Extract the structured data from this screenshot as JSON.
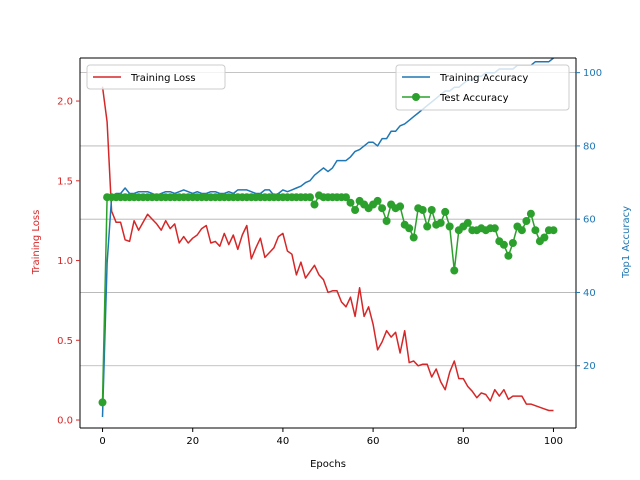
{
  "chart_data": {
    "type": "line",
    "title": "",
    "xlabel": "Epochs",
    "ylabel_left": "Training Loss",
    "ylabel_right": "Top1 Accuracy",
    "xlim": [
      -5,
      105
    ],
    "ylim_left": [
      -0.05,
      2.27
    ],
    "ylim_right": [
      3,
      104
    ],
    "x_ticks": [
      0,
      20,
      40,
      60,
      80,
      100
    ],
    "y_left_ticks": [
      0.0,
      0.5,
      1.0,
      1.5,
      2.0
    ],
    "y_left_tick_labels": [
      "0.0",
      "0.5",
      "1.0",
      "1.5",
      "2.0"
    ],
    "y_right_ticks": [
      20,
      40,
      60,
      80,
      100
    ],
    "grid": "horizontal gridlines at right-axis ticks",
    "legend_left": {
      "position": "top-left",
      "entries": [
        "Training Loss"
      ]
    },
    "legend_right": {
      "position": "top-right",
      "entries": [
        "Training Accuracy",
        "Test Accuracy"
      ]
    },
    "colors": {
      "loss": "#d62728",
      "train_acc": "#1f77b4",
      "test_acc": "#2ca02c"
    },
    "series": [
      {
        "name": "Training Loss",
        "axis": "left",
        "color": "#d62728",
        "x": [
          0,
          1,
          2,
          3,
          4,
          5,
          6,
          7,
          8,
          9,
          10,
          11,
          12,
          13,
          14,
          15,
          16,
          17,
          18,
          19,
          20,
          21,
          22,
          23,
          24,
          25,
          26,
          27,
          28,
          29,
          30,
          31,
          32,
          33,
          34,
          35,
          36,
          37,
          38,
          39,
          40,
          41,
          42,
          43,
          44,
          45,
          46,
          47,
          48,
          49,
          50,
          51,
          52,
          53,
          54,
          55,
          56,
          57,
          58,
          59,
          60,
          61,
          62,
          63,
          64,
          65,
          66,
          67,
          68,
          69,
          70,
          71,
          72,
          73,
          74,
          75,
          76,
          77,
          78,
          79,
          80,
          81,
          82,
          83,
          84,
          85,
          86,
          87,
          88,
          89,
          90,
          91,
          92,
          93,
          94,
          95,
          96,
          97,
          98,
          99,
          100
        ],
        "values": [
          2.09,
          1.87,
          1.31,
          1.24,
          1.24,
          1.13,
          1.12,
          1.25,
          1.19,
          1.24,
          1.29,
          1.26,
          1.23,
          1.19,
          1.25,
          1.2,
          1.23,
          1.11,
          1.15,
          1.11,
          1.14,
          1.16,
          1.2,
          1.22,
          1.11,
          1.12,
          1.09,
          1.17,
          1.1,
          1.16,
          1.07,
          1.16,
          1.22,
          1.01,
          1.08,
          1.14,
          1.02,
          1.05,
          1.08,
          1.15,
          1.17,
          1.06,
          1.04,
          0.91,
          0.99,
          0.89,
          0.93,
          0.97,
          0.91,
          0.88,
          0.8,
          0.81,
          0.81,
          0.74,
          0.71,
          0.77,
          0.65,
          0.83,
          0.65,
          0.71,
          0.6,
          0.44,
          0.49,
          0.56,
          0.52,
          0.55,
          0.42,
          0.56,
          0.36,
          0.37,
          0.34,
          0.35,
          0.35,
          0.27,
          0.32,
          0.24,
          0.19,
          0.3,
          0.37,
          0.26,
          0.26,
          0.21,
          0.18,
          0.14,
          0.17,
          0.16,
          0.12,
          0.19,
          0.15,
          0.19,
          0.13,
          0.15,
          0.15,
          0.15,
          0.1,
          0.1,
          0.09,
          0.08,
          0.07,
          0.06,
          0.06
        ]
      },
      {
        "name": "Training Accuracy",
        "axis": "right",
        "color": "#1f77b4",
        "x": [
          0,
          1,
          2,
          3,
          4,
          5,
          6,
          7,
          8,
          9,
          10,
          11,
          12,
          13,
          14,
          15,
          16,
          17,
          18,
          19,
          20,
          21,
          22,
          23,
          24,
          25,
          26,
          27,
          28,
          29,
          30,
          31,
          32,
          33,
          34,
          35,
          36,
          37,
          38,
          39,
          40,
          41,
          42,
          43,
          44,
          45,
          46,
          47,
          48,
          49,
          50,
          51,
          52,
          53,
          54,
          55,
          56,
          57,
          58,
          59,
          60,
          61,
          62,
          63,
          64,
          65,
          66,
          67,
          68,
          69,
          70,
          71,
          72,
          73,
          74,
          75,
          76,
          77,
          78,
          79,
          80,
          81,
          82,
          83,
          84,
          85,
          86,
          87,
          88,
          89,
          90,
          91,
          92,
          93,
          94,
          95,
          96,
          97,
          98,
          99,
          100
        ],
        "values": [
          6,
          48,
          66,
          67,
          67,
          68.5,
          67,
          67,
          67.5,
          67.5,
          67.5,
          67,
          66.5,
          67,
          67.5,
          67.5,
          67,
          67.5,
          68,
          67.5,
          67,
          67.5,
          67,
          67,
          67.5,
          67.5,
          67,
          67,
          67.5,
          67,
          68,
          68,
          68,
          67.5,
          67,
          67,
          68,
          68,
          66.5,
          67,
          68,
          67.5,
          68,
          68.5,
          69,
          70,
          70.5,
          72,
          73,
          74,
          73,
          74,
          76,
          76,
          76,
          77,
          78.5,
          79,
          80,
          81,
          81,
          80,
          82,
          82,
          84,
          84,
          85.5,
          86,
          87,
          88,
          89,
          90,
          91,
          92,
          93,
          94,
          95,
          95,
          96,
          96,
          97,
          98,
          98,
          99,
          99,
          100,
          100,
          100,
          101,
          101,
          101,
          101,
          102,
          102,
          102,
          102,
          103,
          103,
          103,
          103,
          104
        ]
      },
      {
        "name": "Test Accuracy",
        "axis": "right",
        "color": "#2ca02c",
        "markers": true,
        "x": [
          0,
          1,
          2,
          3,
          4,
          5,
          6,
          7,
          8,
          9,
          10,
          11,
          12,
          13,
          14,
          15,
          16,
          17,
          18,
          19,
          20,
          21,
          22,
          23,
          24,
          25,
          26,
          27,
          28,
          29,
          30,
          31,
          32,
          33,
          34,
          35,
          36,
          37,
          38,
          39,
          40,
          41,
          42,
          43,
          44,
          45,
          46,
          47,
          48,
          49,
          50,
          51,
          52,
          53,
          54,
          55,
          56,
          57,
          58,
          59,
          60,
          61,
          62,
          63,
          64,
          65,
          66,
          67,
          68,
          69,
          70,
          71,
          72,
          73,
          74,
          75,
          76,
          77,
          78,
          79,
          80,
          81,
          82,
          83,
          84,
          85,
          86,
          87,
          88,
          89,
          90,
          91,
          92,
          93,
          94,
          95,
          96,
          97,
          98,
          99,
          100
        ],
        "values": [
          10,
          66,
          66,
          66,
          66,
          66,
          66,
          66,
          66,
          66,
          66,
          66,
          66,
          66,
          66,
          66,
          66,
          66,
          66,
          66,
          66,
          66,
          66,
          66,
          66,
          66,
          66,
          66,
          66,
          66,
          66,
          66,
          66,
          66,
          66,
          66,
          66,
          66,
          66,
          66,
          66,
          66,
          66,
          66,
          66,
          66,
          66,
          64,
          66.5,
          66,
          66,
          66,
          66,
          66,
          66,
          64.5,
          62.5,
          65,
          64,
          63,
          64,
          65,
          63,
          59.5,
          64,
          63,
          63.5,
          58.5,
          57.5,
          55,
          63,
          62.5,
          58,
          62.5,
          58.5,
          59,
          62,
          58,
          46,
          57,
          58,
          59,
          57,
          57,
          57.5,
          57,
          57.5,
          57.5,
          54,
          53,
          50,
          53.5,
          58,
          57,
          59.5,
          61.5,
          57,
          54,
          55,
          57,
          57
        ]
      }
    ]
  }
}
